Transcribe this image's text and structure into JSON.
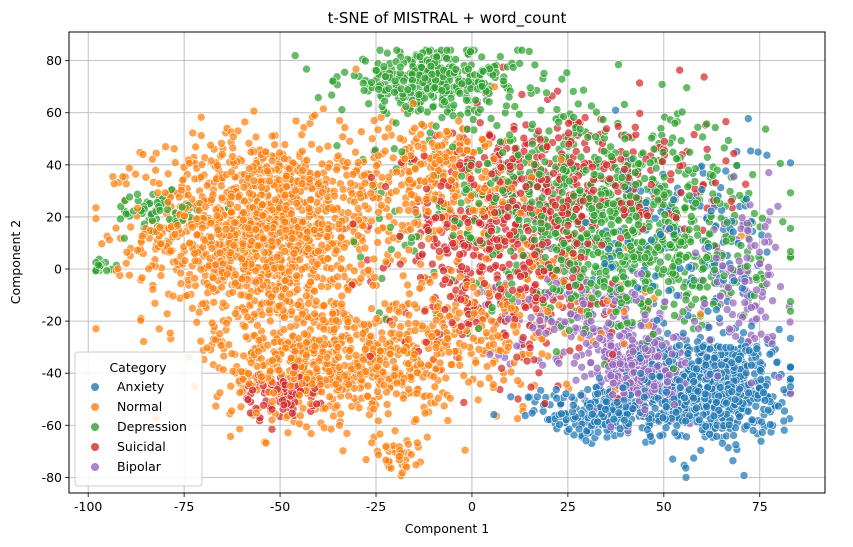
{
  "chart_data": {
    "type": "scatter",
    "title": "t-SNE of MISTRAL + word_count",
    "xlabel": "Component 1",
    "ylabel": "Component 2",
    "xlim": [
      -105,
      92
    ],
    "ylim": [
      -86,
      91
    ],
    "xticks": [
      -100,
      -75,
      -50,
      -25,
      0,
      25,
      50,
      75
    ],
    "yticks": [
      -80,
      -60,
      -40,
      -20,
      0,
      20,
      40,
      60,
      80
    ],
    "grid": true,
    "legend": {
      "title": "Category",
      "placement": "lower-left",
      "entries": [
        "Anxiety",
        "Normal",
        "Depression",
        "Suicidal",
        "Bipolar"
      ]
    },
    "series": [
      {
        "name": "Normal",
        "color": "#ff7f0e",
        "clusters": [
          {
            "center": [
              -55,
              15
            ],
            "spread": [
              15,
              18
            ],
            "n": 1300
          },
          {
            "center": [
              -35,
              -35
            ],
            "spread": [
              16,
              12
            ],
            "n": 700
          },
          {
            "center": [
              -10,
              35
            ],
            "spread": [
              12,
              12
            ],
            "n": 300
          },
          {
            "center": [
              5,
              -20
            ],
            "spread": [
              18,
              15
            ],
            "n": 250
          },
          {
            "center": [
              -20,
              -72
            ],
            "spread": [
              3,
              3
            ],
            "n": 40
          }
        ]
      },
      {
        "name": "Depression",
        "color": "#2ca02c",
        "clusters": [
          {
            "center": [
              -10,
              72
            ],
            "spread": [
              12,
              6
            ],
            "n": 350
          },
          {
            "center": [
              30,
              25
            ],
            "spread": [
              22,
              18
            ],
            "n": 700
          },
          {
            "center": [
              45,
              0
            ],
            "spread": [
              15,
              12
            ],
            "n": 300
          },
          {
            "center": [
              -83,
              22
            ],
            "spread": [
              6,
              4
            ],
            "n": 60
          },
          {
            "center": [
              -96,
              1
            ],
            "spread": [
              2,
              1
            ],
            "n": 15
          }
        ]
      },
      {
        "name": "Suicidal",
        "color": "#d62728",
        "clusters": [
          {
            "center": [
              10,
              10
            ],
            "spread": [
              14,
              22
            ],
            "n": 500
          },
          {
            "center": [
              -50,
              -48
            ],
            "spread": [
              5,
              5
            ],
            "n": 90
          },
          {
            "center": [
              30,
              35
            ],
            "spread": [
              18,
              15
            ],
            "n": 250
          }
        ]
      },
      {
        "name": "Anxiety",
        "color": "#1f77b4",
        "clusters": [
          {
            "center": [
              62,
              -45
            ],
            "spread": [
              9,
              10
            ],
            "n": 700
          },
          {
            "center": [
              35,
              -55
            ],
            "spread": [
              10,
              5
            ],
            "n": 250
          },
          {
            "center": [
              55,
              10
            ],
            "spread": [
              12,
              20
            ],
            "n": 150
          }
        ]
      },
      {
        "name": "Bipolar",
        "color": "#9467bd",
        "clusters": [
          {
            "center": [
              45,
              -40
            ],
            "spread": [
              6,
              8
            ],
            "n": 300
          },
          {
            "center": [
              30,
              -20
            ],
            "spread": [
              12,
              10
            ],
            "n": 180
          },
          {
            "center": [
              70,
              -5
            ],
            "spread": [
              6,
              15
            ],
            "n": 120
          }
        ]
      }
    ]
  }
}
